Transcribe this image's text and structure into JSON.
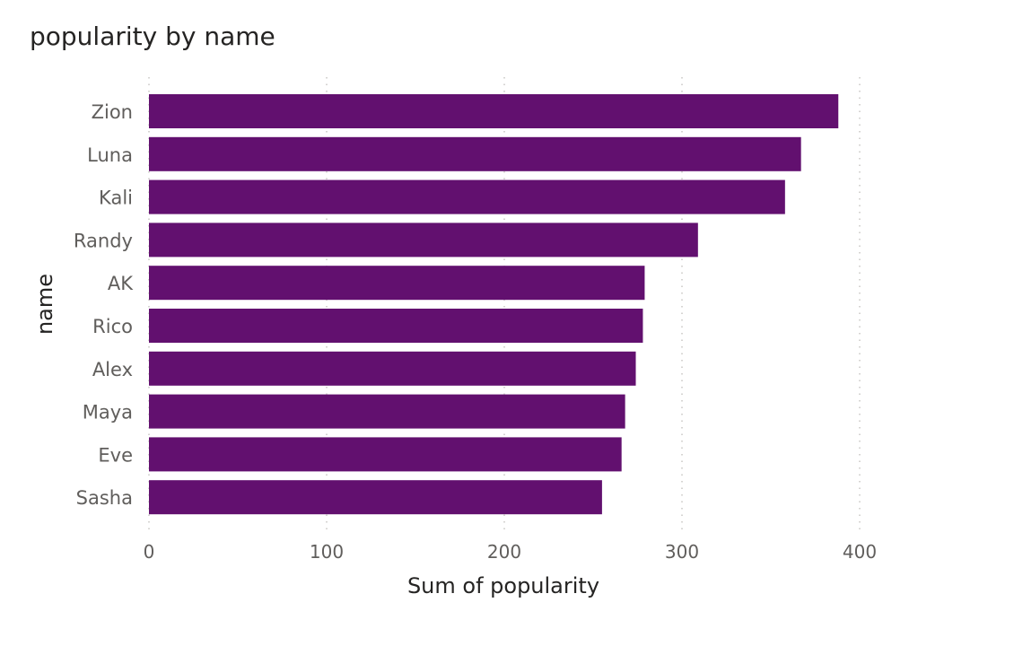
{
  "chart_data": {
    "type": "bar",
    "orientation": "horizontal",
    "title": "popularity by name",
    "xlabel": "Sum of popularity",
    "ylabel": "name",
    "categories": [
      "Zion",
      "Luna",
      "Kali",
      "Randy",
      "AK",
      "Rico",
      "Alex",
      "Maya",
      "Eve",
      "Sasha"
    ],
    "values": [
      388,
      367,
      358,
      309,
      279,
      278,
      274,
      268,
      266,
      255
    ],
    "xlim": [
      0,
      400
    ],
    "xticks": [
      0,
      100,
      200,
      300,
      400
    ],
    "grid": true,
    "legend": "none",
    "bar_color": "#62106F",
    "text_color": "#605E5C",
    "axis_title_color": "#252423",
    "grid_color": "#C8C6C4"
  }
}
